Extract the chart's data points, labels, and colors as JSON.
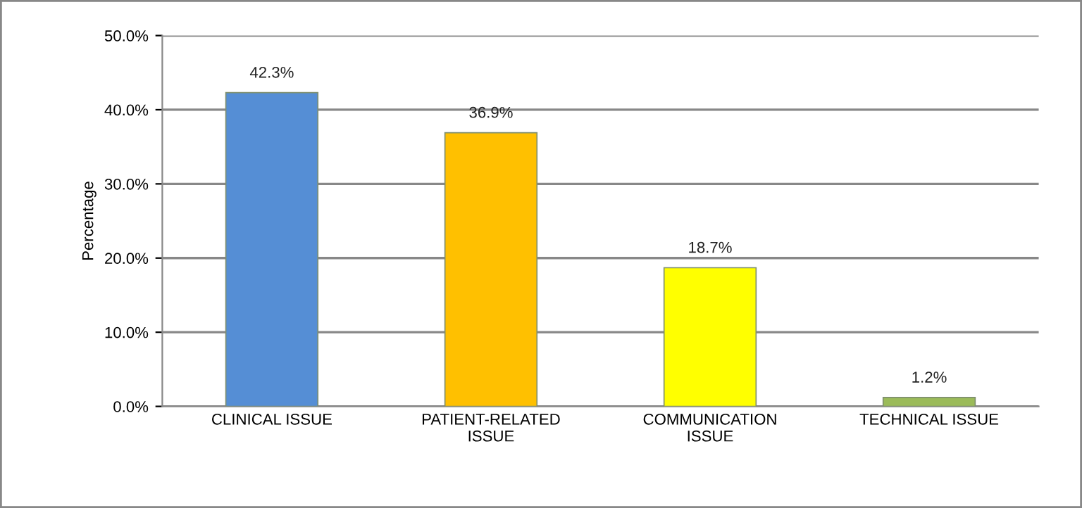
{
  "chart_data": {
    "type": "bar",
    "ylabel": "Percentage",
    "categories": [
      "CLINICAL ISSUE",
      "PATIENT-RELATED ISSUE",
      "COMMUNICATION ISSUE",
      "TECHNICAL ISSUE"
    ],
    "values": [
      42.3,
      36.9,
      18.7,
      1.2
    ],
    "colors": [
      "#558ed5",
      "#ffc000",
      "#ffff00",
      "#9bbb59"
    ],
    "value_labels": [
      "42.3%",
      "36.9%",
      "18.7%",
      "1.2%"
    ],
    "ylim": [
      0,
      50
    ],
    "yticks": [
      {
        "value": 0,
        "label": "0.0%"
      },
      {
        "value": 10,
        "label": "10.0%"
      },
      {
        "value": 20,
        "label": "20.0%"
      },
      {
        "value": 30,
        "label": "30.0%"
      },
      {
        "value": 40,
        "label": "40.0%"
      },
      {
        "value": 50,
        "label": "50.0%"
      }
    ],
    "grid": "y",
    "legend": false
  }
}
